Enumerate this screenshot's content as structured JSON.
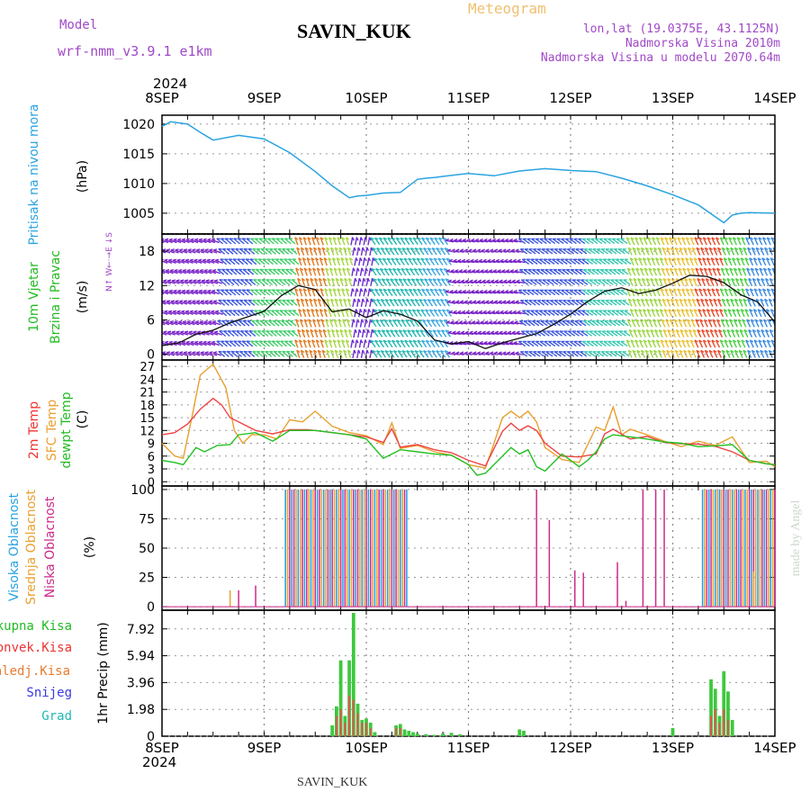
{
  "header": {
    "model_label": "Model",
    "model_name": "wrf-nmm_v3.9.1  e1km",
    "station": "SAVIN_KUK",
    "type_label": "Meteogram",
    "location": "lon,lat (19.0375E, 43.1125N)",
    "elevation": "Nadmorska Visina 2010m",
    "model_elevation": "Nadmorska Visina u modelu 2070.64m",
    "footer_station": "SAVIN_KUK",
    "watermark": "made by Angel"
  },
  "time_axis": {
    "year": "2024",
    "labels": [
      "8SEP",
      "9SEP",
      "10SEP",
      "11SEP",
      "12SEP",
      "13SEP",
      "14SEP"
    ],
    "range_hours": [
      0,
      144
    ]
  },
  "panels": {
    "pressure": {
      "label": "Pritisak na nivou mora",
      "unit": "(hPa)",
      "color": "#2aa3e0"
    },
    "wind": {
      "label_line1": "10m Vjetar",
      "label_line2": "Brzina i Pravac",
      "unit": "(m/s)",
      "compass": "N↑  W←·→E  ↓S"
    },
    "temp": {
      "label_2m": "2m Temp",
      "label_sfc": "SFC Temp",
      "label_dew": "dewpt Temp",
      "unit": "(C)"
    },
    "cloud": {
      "label_high": "Visoka Oblacnost",
      "label_mid": "Srednja Oblacnost",
      "label_low": "Niska Oblacnost",
      "unit": "(%)"
    },
    "precip": {
      "labels": [
        "Ukupna Kisa",
        "Konvek.Kisa",
        "Zaledj.Kisa",
        "Snijeg",
        "Grad"
      ],
      "unit": "1hr Precip (mm)"
    }
  },
  "chart_data": [
    {
      "type": "line",
      "title": "",
      "ylabel": "(hPa)",
      "ylim": [
        1001.5,
        1021.5
      ],
      "yticks": [
        1005,
        1010,
        1015,
        1020
      ],
      "series": [
        {
          "name": "Pritisak na nivou mora",
          "x": [
            0,
            2,
            6,
            9,
            12,
            18,
            24,
            30,
            36,
            40,
            44,
            46,
            48,
            52,
            56,
            60,
            62,
            64,
            66,
            72,
            78,
            84,
            90,
            96,
            102,
            108,
            114,
            120,
            126,
            132,
            134,
            136,
            138,
            144
          ],
          "y": [
            1019.6,
            1020.4,
            1020.0,
            1018.6,
            1017.3,
            1018.1,
            1017.5,
            1015.2,
            1012.0,
            1009.6,
            1007.6,
            1007.9,
            1008.0,
            1008.4,
            1008.5,
            1010.7,
            1010.9,
            1011.0,
            1011.2,
            1011.7,
            1011.3,
            1012.1,
            1012.5,
            1012.2,
            1012.0,
            1010.9,
            1009.6,
            1008.1,
            1006.4,
            1003.4,
            1004.7,
            1005.0,
            1005.1,
            1005.0
          ]
        }
      ]
    },
    {
      "type": "line",
      "title": "",
      "ylabel": "(m/s)",
      "ylim": [
        -1,
        21
      ],
      "yticks": [
        0,
        6,
        12,
        18
      ],
      "series": [
        {
          "name": "10m wind speed",
          "x": [
            0,
            4,
            8,
            12,
            16,
            20,
            24,
            28,
            32,
            36,
            40,
            44,
            48,
            52,
            56,
            60,
            64,
            68,
            72,
            76,
            80,
            84,
            88,
            92,
            96,
            100,
            104,
            108,
            112,
            116,
            120,
            124,
            128,
            132,
            136,
            140,
            144
          ],
          "y": [
            1.5,
            2.0,
            3.5,
            4.2,
            5.5,
            6.5,
            7.5,
            10.2,
            12.0,
            11.3,
            7.4,
            7.9,
            6.4,
            7.6,
            7.0,
            5.8,
            2.5,
            1.8,
            2.2,
            1.0,
            2.0,
            2.8,
            3.6,
            5.2,
            7.0,
            9.2,
            11.0,
            11.6,
            10.6,
            11.2,
            12.4,
            13.8,
            13.6,
            12.5,
            10.4,
            9.1,
            5.6
          ]
        }
      ]
    },
    {
      "type": "line",
      "title": "",
      "ylabel": "(C)",
      "ylim": [
        -1,
        28.5
      ],
      "yticks": [
        0,
        3,
        6,
        9,
        12,
        15,
        18,
        21,
        24,
        27
      ],
      "series": [
        {
          "name": "2m Temp",
          "x": [
            0,
            3,
            6,
            9,
            12,
            14,
            16,
            18,
            22,
            26,
            30,
            34,
            36,
            40,
            44,
            48,
            52,
            54,
            56,
            60,
            64,
            68,
            72,
            76,
            80,
            82,
            84,
            86,
            88,
            90,
            94,
            98,
            102,
            104,
            106,
            110,
            114,
            118,
            122,
            126,
            130,
            134,
            138,
            142,
            144
          ],
          "y": [
            11,
            11.5,
            13.5,
            17,
            19.5,
            18,
            15,
            14,
            12,
            11.2,
            12.2,
            12.2,
            12,
            11.5,
            11,
            10.5,
            9.2,
            12.4,
            8.1,
            8.7,
            7.5,
            6.8,
            5,
            3.7,
            11.8,
            13.7,
            12,
            13.1,
            12,
            9,
            6,
            5.8,
            6.5,
            11.2,
            12.3,
            10,
            10.6,
            9.2,
            8.9,
            8.8,
            8.3,
            7,
            5,
            4.2,
            4
          ]
        },
        {
          "name": "SFC Temp",
          "x": [
            0,
            3,
            5,
            7,
            9,
            12,
            15,
            17,
            19,
            21,
            24,
            27,
            30,
            33,
            36,
            40,
            44,
            48,
            52,
            54,
            56,
            60,
            64,
            68,
            72,
            76,
            78,
            80,
            82,
            84,
            86,
            88,
            90,
            94,
            98,
            102,
            104,
            106,
            108,
            110,
            114,
            118,
            122,
            126,
            130,
            134,
            138,
            142,
            144
          ],
          "y": [
            9,
            6,
            5.5,
            15,
            25,
            27.5,
            22,
            12,
            9,
            11,
            11,
            10,
            14.5,
            14,
            16.5,
            13,
            11.5,
            10.8,
            8.7,
            13.8,
            7.8,
            8.5,
            7,
            6.2,
            4,
            3.2,
            9,
            15,
            16.5,
            15,
            16.5,
            14,
            8,
            5.2,
            4.5,
            12.8,
            12,
            17.5,
            11,
            12.3,
            11,
            9.5,
            8.2,
            9.5,
            8.5,
            10.5,
            4.5,
            4.8,
            3.5
          ]
        },
        {
          "name": "dewpt Temp",
          "x": [
            0,
            3,
            5,
            8,
            10,
            13,
            16,
            18,
            22,
            26,
            30,
            34,
            36,
            40,
            44,
            48,
            52,
            56,
            60,
            64,
            68,
            72,
            74,
            76,
            80,
            82,
            84,
            86,
            88,
            90,
            94,
            98,
            100,
            102,
            104,
            106,
            110,
            114,
            118,
            122,
            126,
            130,
            134,
            138,
            142,
            144
          ],
          "y": [
            5,
            4.5,
            4,
            8,
            7,
            8.5,
            8.7,
            11,
            11.5,
            9.5,
            12,
            12,
            12,
            11.5,
            11,
            10,
            5.5,
            7.5,
            7,
            6.5,
            6.2,
            4,
            1.5,
            2,
            6,
            8,
            6.5,
            7.5,
            3.5,
            2.5,
            6.5,
            3.5,
            5,
            7,
            10,
            11,
            10.5,
            10,
            9.3,
            9,
            8.2,
            8.4,
            8.7,
            5,
            4.2,
            4
          ]
        }
      ]
    },
    {
      "type": "bar",
      "title": "",
      "ylabel": "(%)",
      "ylim": [
        -3,
        103
      ],
      "yticks": [
        0,
        25,
        50,
        75,
        100
      ],
      "overcast_periods": [
        [
          29,
          57.5
        ],
        [
          127,
          131
        ],
        [
          131,
          144
        ]
      ],
      "scattered_low": {
        "hours": [
          18,
          22,
          88,
          91,
          97,
          99,
          107,
          109,
          113,
          116,
          118
        ],
        "values": [
          14,
          18,
          100,
          74,
          31,
          29,
          38,
          5,
          100,
          100,
          100
        ]
      },
      "scattered_mid": {
        "hours": [
          16,
          139
        ],
        "values": [
          14,
          30
        ]
      }
    },
    {
      "type": "bar",
      "title": "",
      "ylabel": "1hr Precip (mm)",
      "ylim": [
        0,
        9.3
      ],
      "yticks": [
        0,
        1.98,
        3.96,
        5.94,
        7.92
      ],
      "series": [
        {
          "name": "Ukupna Kisa",
          "x": [
            40,
            41,
            42,
            43,
            44,
            45,
            46,
            47,
            48,
            49,
            50,
            55,
            56,
            57,
            58,
            59,
            60,
            62,
            64,
            66,
            68,
            70,
            84,
            85,
            120,
            129,
            130,
            131,
            132,
            133,
            134
          ],
          "y": [
            0.8,
            2.2,
            5.6,
            1.5,
            5.6,
            9.1,
            2.4,
            1.2,
            1.3,
            1.0,
            0.3,
            0.8,
            0.9,
            0.5,
            0.4,
            0.3,
            0.2,
            0.15,
            0.1,
            0.2,
            0.25,
            0.15,
            0.5,
            0.4,
            0.6,
            4.2,
            3.5,
            1.5,
            4.8,
            3.3,
            1.2
          ]
        },
        {
          "name": "Konvek.Kisa",
          "x": [
            41,
            42,
            43,
            44,
            45,
            46,
            47,
            48,
            49,
            55,
            56,
            129,
            130,
            131,
            132,
            133
          ],
          "y": [
            1.5,
            2.0,
            1.0,
            3.0,
            2.7,
            1.7,
            1.0,
            1.0,
            0.6,
            0.6,
            0.6,
            1.5,
            2.0,
            1.0,
            2.0,
            1.2
          ]
        }
      ]
    }
  ]
}
